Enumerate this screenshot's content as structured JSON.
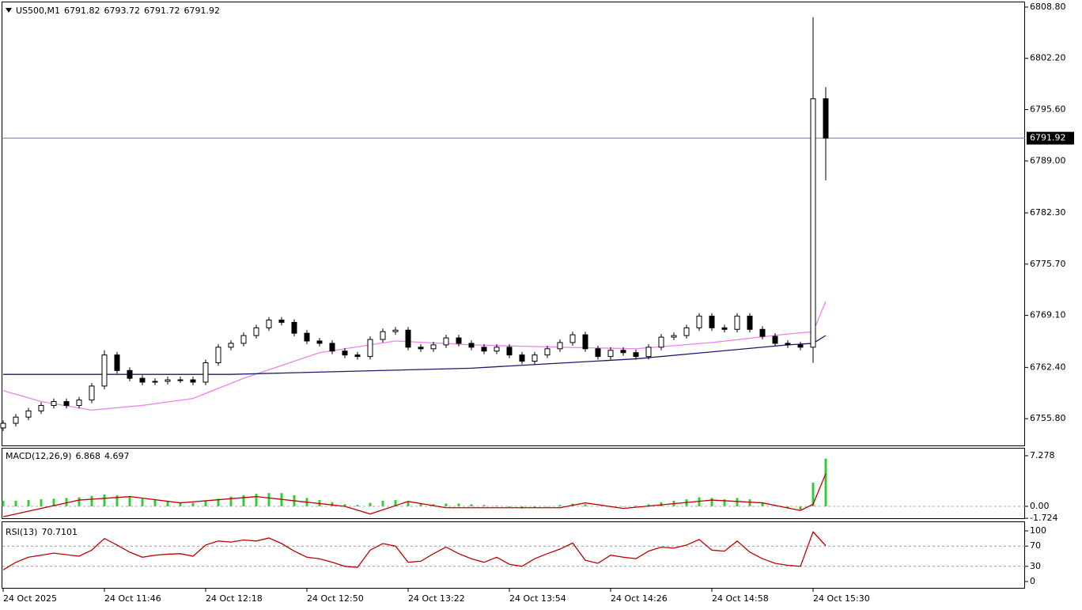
{
  "chart_data": [
    {
      "type": "candlestick",
      "title": "US500,M1",
      "ohlc": [
        6791.82,
        6793.72,
        6791.72,
        6791.92
      ],
      "last_price": 6791.92,
      "up_color": "#ffffff",
      "down_color": "#000000",
      "edge_color": "#000000",
      "last_price_color": "#6c7f99",
      "open": [
        6754.6,
        6755.2,
        6756.0,
        6756.8,
        6757.5,
        6758.0,
        6757.5,
        6758.2,
        6760.0,
        6764.0,
        6762.0,
        6761.0,
        6760.5,
        6760.6,
        6760.8,
        6760.8,
        6760.5,
        6763.0,
        6765.0,
        6765.5,
        6766.5,
        6767.5,
        6768.5,
        6768.2,
        6766.8,
        6765.8,
        6765.5,
        6764.5,
        6764.0,
        6763.8,
        6766.0,
        6767.0,
        6767.2,
        6765.0,
        6764.8,
        6765.3,
        6766.2,
        6765.5,
        6765.0,
        6764.5,
        6765.0,
        6764.0,
        6763.2,
        6764.0,
        6764.8,
        6765.6,
        6766.6,
        6764.8,
        6763.8,
        6764.6,
        6764.3,
        6763.8,
        6765.0,
        6766.3,
        6766.5,
        6767.5,
        6769.0,
        6767.5,
        6767.3,
        6769.0,
        6767.3,
        6766.4,
        6765.5,
        6765.3,
        6765.0,
        6797.0
      ],
      "high": [
        6755.6,
        6756.4,
        6757.2,
        6757.9,
        6758.4,
        6758.4,
        6758.6,
        6760.4,
        6764.6,
        6764.4,
        6762.4,
        6761.4,
        6761.0,
        6761.2,
        6761.2,
        6761.2,
        6763.4,
        6765.4,
        6765.9,
        6766.9,
        6767.9,
        6768.9,
        6768.9,
        6768.6,
        6767.2,
        6766.2,
        6765.9,
        6764.9,
        6764.4,
        6766.4,
        6767.4,
        6767.6,
        6767.6,
        6765.4,
        6765.7,
        6766.6,
        6766.6,
        6765.9,
        6765.4,
        6765.4,
        6765.4,
        6764.4,
        6764.4,
        6765.2,
        6766.0,
        6767.0,
        6767.0,
        6765.2,
        6765.0,
        6765.0,
        6764.7,
        6765.4,
        6766.7,
        6766.9,
        6767.9,
        6769.4,
        6769.4,
        6767.9,
        6769.4,
        6769.4,
        6767.7,
        6766.8,
        6765.9,
        6765.7,
        6807.5,
        6798.5
      ],
      "low": [
        6754.2,
        6754.8,
        6755.6,
        6756.4,
        6757.1,
        6757.1,
        6757.1,
        6757.8,
        6759.6,
        6761.6,
        6760.6,
        6760.1,
        6760.1,
        6760.2,
        6760.4,
        6760.1,
        6760.1,
        6762.6,
        6764.6,
        6765.1,
        6766.1,
        6767.1,
        6767.8,
        6766.4,
        6765.4,
        6765.1,
        6764.1,
        6763.6,
        6763.4,
        6763.4,
        6765.6,
        6766.6,
        6764.6,
        6764.4,
        6764.4,
        6764.9,
        6765.1,
        6764.6,
        6764.1,
        6764.1,
        6763.6,
        6762.8,
        6762.8,
        6763.6,
        6764.4,
        6765.2,
        6764.4,
        6763.4,
        6763.4,
        6763.9,
        6763.4,
        6763.4,
        6764.6,
        6765.9,
        6766.1,
        6767.1,
        6767.1,
        6766.9,
        6766.9,
        6766.9,
        6766.0,
        6765.1,
        6764.9,
        6764.6,
        6763.0,
        6786.5
      ],
      "close": [
        6755.2,
        6756.0,
        6756.8,
        6757.5,
        6758.0,
        6757.5,
        6758.2,
        6760.0,
        6764.0,
        6762.0,
        6761.0,
        6760.5,
        6760.6,
        6760.8,
        6760.8,
        6760.5,
        6763.0,
        6765.0,
        6765.5,
        6766.5,
        6767.5,
        6768.5,
        6768.2,
        6766.8,
        6765.8,
        6765.5,
        6764.5,
        6764.0,
        6763.8,
        6766.0,
        6767.0,
        6767.2,
        6765.0,
        6764.8,
        6765.3,
        6766.2,
        6765.5,
        6765.0,
        6764.5,
        6765.0,
        6764.0,
        6763.2,
        6764.0,
        6764.8,
        6765.6,
        6766.6,
        6764.8,
        6763.8,
        6764.6,
        6764.3,
        6763.8,
        6765.0,
        6766.3,
        6766.5,
        6767.5,
        6769.0,
        6767.5,
        6767.3,
        6769.0,
        6767.3,
        6766.4,
        6765.5,
        6765.3,
        6765.0,
        6797.0,
        6791.92
      ],
      "lines": [
        {
          "color": "#ee82ee",
          "x": [
            0,
            3,
            7,
            11,
            15,
            19,
            25,
            31,
            37,
            44,
            50,
            56,
            62,
            64,
            65
          ],
          "values": [
            6759.4,
            6758.0,
            6756.9,
            6757.5,
            6758.4,
            6761.0,
            6764.3,
            6765.8,
            6765.3,
            6765.0,
            6764.8,
            6765.6,
            6766.7,
            6767.0,
            6770.9
          ]
        },
        {
          "color": "#191970",
          "x": [
            0,
            18,
            37,
            50,
            62,
            64,
            65
          ],
          "values": [
            6761.5,
            6761.5,
            6762.3,
            6763.5,
            6765.3,
            6765.5,
            6766.5
          ]
        }
      ],
      "ylim": [
        6752.35,
        6809.51
      ],
      "yticks": [
        {
          "value": 6808.8,
          "label": "6808.80"
        },
        {
          "value": 6802.2,
          "label": "6802.20"
        },
        {
          "value": 6795.6,
          "label": "6795.60"
        },
        {
          "value": 6789,
          "label": "6789.00"
        },
        {
          "value": 6782.3,
          "label": "6782.30"
        },
        {
          "value": 6775.7,
          "label": "6775.70"
        },
        {
          "value": 6769.1,
          "label": "6769.10"
        },
        {
          "value": 6762.4,
          "label": "6762.40"
        },
        {
          "value": 6755.8,
          "label": "6755.80"
        }
      ]
    },
    {
      "type": "bar",
      "title": "MACD(12,26,9)",
      "readout": [
        6.868,
        4.697
      ],
      "color": "#32cd32",
      "values": [
        0.8,
        0.8,
        0.9,
        1.0,
        1.1,
        1.2,
        1.3,
        1.5,
        1.7,
        1.6,
        1.4,
        1.1,
        0.9,
        0.7,
        0.5,
        0.5,
        0.8,
        1.1,
        1.4,
        1.6,
        1.8,
        1.9,
        1.9,
        1.6,
        1.2,
        0.9,
        0.6,
        0.3,
        0.2,
        0.5,
        0.8,
        0.9,
        0.7,
        0.4,
        0.3,
        0.4,
        0.4,
        0.3,
        0.2,
        0.1,
        -0.1,
        -0.3,
        -0.2,
        0.0,
        0.2,
        0.4,
        0.3,
        0.0,
        -0.1,
        0.0,
        0.1,
        0.3,
        0.6,
        0.8,
        1.0,
        1.3,
        1.2,
        1.0,
        1.2,
        1.0,
        0.6,
        0.1,
        -0.3,
        -0.5,
        3.4,
        6.868
      ],
      "signal": {
        "color": "#c00000",
        "x": [
          0,
          6,
          10,
          14,
          20,
          27,
          29,
          32,
          35,
          44,
          46,
          49,
          56,
          60,
          63,
          64,
          65
        ],
        "values": [
          -1.5,
          0.9,
          1.4,
          0.5,
          1.4,
          0.0,
          -1.1,
          0.7,
          -0.2,
          -0.2,
          0.5,
          -0.3,
          0.9,
          0.5,
          -0.6,
          0.3,
          4.697
        ]
      },
      "ylim": [
        -1.71,
        8.416
      ],
      "yticks": [
        7.278,
        {
          "value": 0,
          "label": "0.00"
        },
        -1.724
      ]
    },
    {
      "type": "line",
      "title": "RSI(13)",
      "readout": 70.7101,
      "color": "#c00000",
      "values": [
        23,
        38,
        48,
        52,
        56,
        53,
        50,
        62,
        85,
        72,
        58,
        48,
        52,
        54,
        55,
        50,
        72,
        80,
        78,
        82,
        80,
        86,
        75,
        60,
        48,
        45,
        38,
        30,
        28,
        62,
        75,
        70,
        38,
        40,
        55,
        68,
        55,
        45,
        38,
        48,
        34,
        30,
        45,
        55,
        64,
        76,
        42,
        36,
        52,
        48,
        45,
        60,
        68,
        66,
        72,
        83,
        62,
        60,
        80,
        58,
        45,
        36,
        32,
        30,
        98,
        70.7101
      ],
      "levels": [
        70,
        30
      ],
      "ylim": [
        -12.5,
        117.2
      ],
      "yticks": [
        100,
        70,
        30,
        0
      ],
      "xlim": [
        0,
        80.75
      ],
      "xticks": [
        {
          "value": 0,
          "label": "24 Oct 2025"
        },
        {
          "value": 8,
          "label": "24 Oct 11:46"
        },
        {
          "value": 16,
          "label": "24 Oct 12:18"
        },
        {
          "value": 24,
          "label": "24 Oct 12:50"
        },
        {
          "value": 32,
          "label": "24 Oct 13:22"
        },
        {
          "value": 40,
          "label": "24 Oct 13:54"
        },
        {
          "value": 48,
          "label": "24 Oct 14:26"
        },
        {
          "value": 56,
          "label": "24 Oct 14:58"
        },
        {
          "value": 64,
          "label": "24 Oct 15:30"
        }
      ]
    }
  ]
}
